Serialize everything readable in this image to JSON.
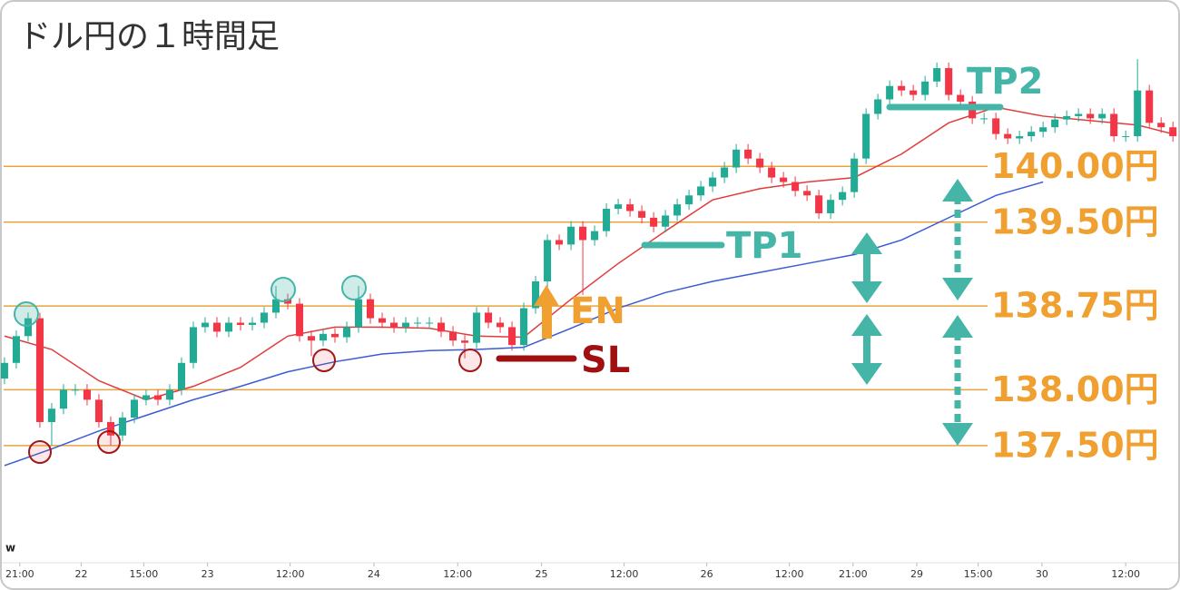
{
  "chart_data": {
    "type": "candlestick",
    "title": "ドル円の１時間足",
    "logo": "w",
    "xlim": [
      -0.38,
      99.6
    ],
    "ylim": [
      136.45,
      141.49
    ],
    "xticks": [
      {
        "value": 1.3,
        "label": "21:00"
      },
      {
        "value": 6.5,
        "label": "22"
      },
      {
        "value": 11.8,
        "label": "15:00"
      },
      {
        "value": 17.2,
        "label": "23"
      },
      {
        "value": 24.2,
        "label": "12:00"
      },
      {
        "value": 31.3,
        "label": "24"
      },
      {
        "value": 38.4,
        "label": "12:00"
      },
      {
        "value": 45.5,
        "label": "25"
      },
      {
        "value": 52.5,
        "label": "12:00"
      },
      {
        "value": 59.5,
        "label": "26"
      },
      {
        "value": 66.5,
        "label": "12:00"
      },
      {
        "value": 71.9,
        "label": "21:00"
      },
      {
        "value": 77.3,
        "label": "29"
      },
      {
        "value": 82.5,
        "label": "15:00"
      },
      {
        "value": 87.9,
        "label": "30"
      },
      {
        "value": 95,
        "label": "12:00"
      }
    ],
    "up_color": "#22ab94",
    "down_color": "#f23645",
    "open": [
      138.1,
      138.24,
      138.48,
      138.64,
      137.71,
      137.83,
      138.0,
      138.0,
      137.91,
      137.71,
      137.59,
      137.75,
      137.91,
      137.95,
      137.91,
      138.0,
      138.24,
      138.56,
      138.6,
      138.52,
      138.6,
      138.58,
      138.6,
      138.69,
      138.81,
      138.77,
      138.48,
      138.44,
      138.5,
      138.47,
      138.56,
      138.81,
      138.64,
      138.6,
      138.56,
      138.6,
      138.6,
      138.6,
      138.52,
      138.44,
      138.42,
      138.69,
      138.6,
      138.56,
      138.4,
      138.73,
      138.97,
      139.34,
      139.3,
      139.46,
      139.34,
      139.42,
      139.62,
      139.66,
      139.6,
      139.54,
      139.46,
      139.56,
      139.66,
      139.74,
      139.82,
      139.9,
      139.99,
      140.15,
      140.07,
      139.99,
      139.9,
      139.86,
      139.78,
      139.74,
      139.58,
      139.7,
      139.77,
      140.07,
      140.47,
      140.6,
      140.72,
      140.68,
      140.64,
      140.76,
      140.88,
      140.64,
      140.58,
      140.43,
      140.43,
      140.29,
      140.25,
      140.27,
      140.31,
      140.35,
      140.42,
      140.45,
      140.47,
      140.43,
      140.47,
      140.27,
      140.27,
      140.68,
      140.39,
      140.35
    ],
    "high": [
      138.29,
      138.53,
      138.69,
      138.69,
      137.88,
      138.05,
      138.05,
      138.05,
      137.96,
      137.76,
      137.8,
      137.96,
      138.0,
      138.0,
      138.05,
      138.29,
      138.61,
      138.65,
      138.65,
      138.65,
      138.65,
      138.65,
      138.74,
      138.93,
      138.86,
      138.82,
      138.53,
      138.55,
      138.55,
      138.61,
      138.93,
      138.86,
      138.69,
      138.65,
      138.65,
      138.65,
      138.65,
      138.65,
      138.57,
      138.49,
      138.74,
      138.74,
      138.65,
      138.61,
      138.78,
      139.02,
      139.39,
      139.39,
      139.51,
      139.51,
      139.47,
      139.67,
      139.71,
      139.71,
      139.65,
      139.59,
      139.61,
      139.71,
      139.79,
      139.87,
      139.95,
      140.04,
      140.2,
      140.2,
      140.12,
      140.04,
      139.95,
      139.91,
      139.83,
      139.79,
      139.75,
      139.82,
      140.12,
      140.52,
      140.65,
      140.77,
      140.77,
      140.73,
      140.81,
      140.93,
      140.93,
      140.69,
      140.63,
      140.48,
      140.48,
      140.34,
      140.32,
      140.36,
      140.4,
      140.47,
      140.5,
      140.52,
      140.52,
      140.52,
      140.52,
      140.32,
      140.96,
      140.73,
      140.44,
      140.4
    ],
    "low": [
      138.05,
      138.19,
      138.43,
      137.66,
      137.5,
      137.78,
      137.95,
      137.86,
      137.66,
      137.5,
      137.54,
      137.7,
      137.86,
      137.86,
      137.86,
      137.95,
      138.19,
      138.51,
      138.47,
      138.47,
      138.53,
      138.53,
      138.55,
      138.64,
      138.72,
      138.43,
      138.3,
      138.39,
      138.42,
      138.42,
      138.51,
      138.59,
      138.55,
      138.51,
      138.51,
      138.55,
      138.55,
      138.47,
      138.39,
      138.28,
      138.37,
      138.55,
      138.51,
      138.35,
      138.35,
      138.68,
      138.92,
      139.25,
      139.25,
      138.85,
      139.29,
      139.37,
      139.57,
      139.55,
      139.49,
      139.41,
      139.41,
      139.51,
      139.61,
      139.69,
      139.77,
      139.85,
      139.94,
      140.02,
      139.94,
      139.85,
      139.81,
      139.73,
      139.69,
      139.53,
      139.53,
      139.65,
      139.72,
      140.02,
      140.42,
      140.55,
      140.63,
      140.59,
      140.59,
      140.71,
      140.59,
      140.53,
      140.38,
      140.38,
      140.24,
      140.2,
      140.2,
      140.22,
      140.26,
      140.3,
      140.37,
      140.4,
      140.38,
      140.38,
      140.22,
      140.22,
      140.22,
      140.34,
      140.3,
      140.22
    ],
    "close": [
      138.24,
      138.48,
      138.64,
      137.71,
      137.83,
      138.0,
      138.0,
      137.91,
      137.71,
      137.59,
      137.75,
      137.91,
      137.95,
      137.91,
      138.0,
      138.24,
      138.56,
      138.6,
      138.52,
      138.6,
      138.58,
      138.6,
      138.69,
      138.81,
      138.77,
      138.48,
      138.44,
      138.5,
      138.47,
      138.56,
      138.81,
      138.64,
      138.6,
      138.56,
      138.6,
      138.6,
      138.6,
      138.52,
      138.44,
      138.42,
      138.69,
      138.6,
      138.56,
      138.4,
      138.73,
      138.97,
      139.34,
      139.3,
      139.46,
      139.34,
      139.42,
      139.62,
      139.66,
      139.6,
      139.54,
      139.46,
      139.56,
      139.66,
      139.74,
      139.82,
      139.9,
      139.99,
      140.15,
      140.07,
      139.99,
      139.9,
      139.86,
      139.78,
      139.74,
      139.58,
      139.7,
      139.77,
      140.07,
      140.47,
      140.6,
      140.72,
      140.68,
      140.64,
      140.76,
      140.88,
      140.64,
      140.58,
      140.43,
      140.43,
      140.29,
      140.25,
      140.27,
      140.31,
      140.35,
      140.42,
      140.45,
      140.47,
      140.43,
      140.47,
      140.27,
      140.27,
      140.68,
      140.39,
      140.35,
      140.27
    ],
    "ma": [
      {
        "color": "#e03c3c",
        "x": [
          0,
          4,
          8,
          12,
          16,
          20,
          24,
          28,
          32,
          36,
          40,
          44,
          48,
          52,
          56,
          60,
          64,
          68,
          72,
          76,
          80,
          84,
          88,
          92,
          96,
          99
        ],
        "values": [
          138.48,
          138.36,
          138.08,
          137.91,
          138.03,
          138.2,
          138.48,
          138.56,
          138.56,
          138.55,
          138.48,
          138.47,
          138.81,
          139.13,
          139.42,
          139.7,
          139.8,
          139.86,
          139.9,
          140.11,
          140.39,
          140.53,
          140.45,
          140.41,
          140.37,
          140.29
        ]
      },
      {
        "color": "#3b5bd6",
        "x": [
          0,
          4,
          8,
          12,
          16,
          20,
          24,
          28,
          32,
          36,
          40,
          44,
          48,
          52,
          56,
          60,
          64,
          68,
          72,
          76,
          80,
          84,
          88
        ],
        "values": [
          137.32,
          137.47,
          137.63,
          137.77,
          137.91,
          138.03,
          138.16,
          138.25,
          138.32,
          138.35,
          138.36,
          138.38,
          138.55,
          138.73,
          138.87,
          138.97,
          139.05,
          139.13,
          139.21,
          139.34,
          139.54,
          139.74,
          139.86
        ]
      }
    ],
    "level_color": "#e8a33c",
    "levels": [
      {
        "value": 140,
        "label": "140.00円"
      },
      {
        "value": 139.5,
        "label": "139.50円"
      },
      {
        "value": 138.75,
        "label": "138.75円"
      },
      {
        "value": 138,
        "label": "138.00円"
      },
      {
        "value": 137.5,
        "label": "137.50円"
      }
    ],
    "annotations": {
      "tp2": "TP2",
      "tp1": "TP1",
      "en": "EN",
      "sl": "SL"
    }
  }
}
